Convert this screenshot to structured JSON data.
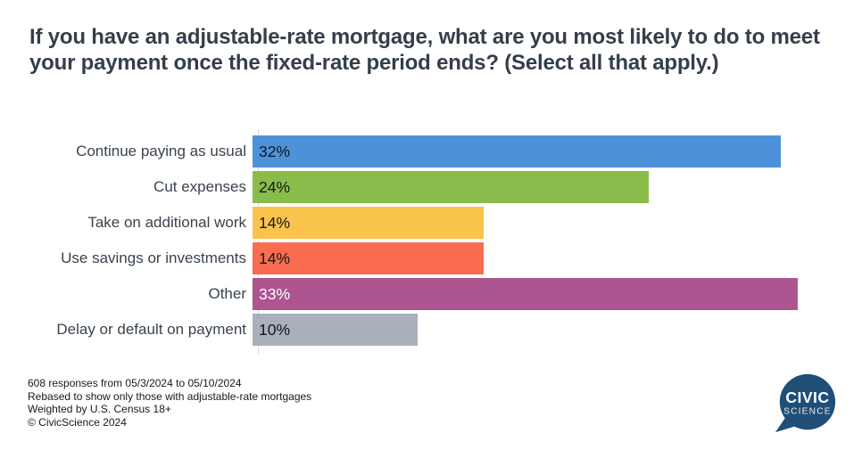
{
  "chart_data": {
    "type": "bar",
    "orientation": "horizontal",
    "title": "If you have an adjustable-rate mortgage, what are you most likely to do to meet your payment once the fixed-rate period ends? (Select all that apply.)",
    "categories": [
      "Continue paying as usual",
      "Cut expenses",
      "Take on additional work",
      "Use savings or investments",
      "Other",
      "Delay or default on payment"
    ],
    "values": [
      32,
      24,
      14,
      14,
      33,
      10
    ],
    "value_suffix": "%",
    "xlim": [
      0,
      35
    ],
    "grid": false,
    "legend": "none",
    "axis_line_color": "#d9d9d9",
    "rows": [
      {
        "label": "Continue paying as usual",
        "value": 32,
        "value_label": "32%",
        "color": "#4D92D9",
        "value_text_color": "#14181c"
      },
      {
        "label": "Cut expenses",
        "value": 24,
        "value_label": "24%",
        "color": "#8ABC4B",
        "value_text_color": "#14181c"
      },
      {
        "label": "Take on additional work",
        "value": 14,
        "value_label": "14%",
        "color": "#FAC34C",
        "value_text_color": "#14181c"
      },
      {
        "label": "Use savings or investments",
        "value": 14,
        "value_label": "14%",
        "color": "#F96C4F",
        "value_text_color": "#14181c"
      },
      {
        "label": "Other",
        "value": 33,
        "value_label": "33%",
        "color": "#AC5590",
        "value_text_color": "#ffffff"
      },
      {
        "label": "Delay or default on payment",
        "value": 10,
        "value_label": "10%",
        "color": "#A9B0BC",
        "value_text_color": "#14181c"
      }
    ]
  },
  "footer": {
    "lines": [
      "608 responses from 05/3/2024 to 05/10/2024",
      "Rebased to show only those with adjustable-rate mortgages",
      "Weighted by U.S. Census 18+",
      "© CivicScience 2024"
    ]
  },
  "logo": {
    "line1": "CIVIC",
    "line2": "SCIENCE",
    "bg_color": "#1F4E77",
    "text_color": "#ffffff"
  }
}
